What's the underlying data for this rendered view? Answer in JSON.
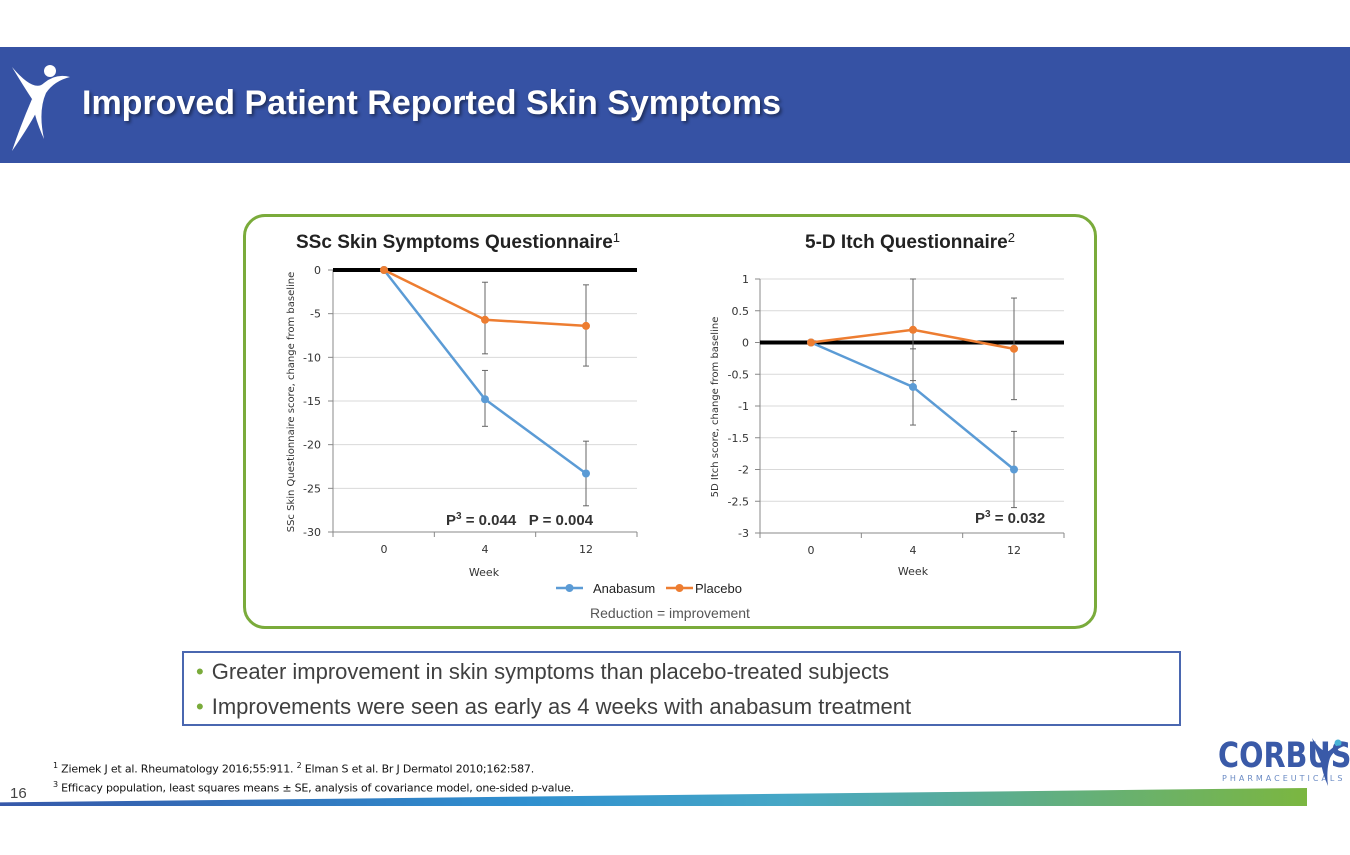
{
  "slide": {
    "title": "Improved Patient Reported Skin Symptoms",
    "page_number": "16"
  },
  "colors": {
    "banner": "#3652a4",
    "frame": "#7aab3b",
    "anabasum": "#5b9bd5",
    "placebo": "#ed7d31",
    "bottom_bar_start": "#3658a9",
    "bottom_bar_end": "#7bb640"
  },
  "legend": {
    "items": [
      "Anabasum",
      "Placebo"
    ],
    "note": "Reduction = improvement"
  },
  "chart_data": [
    {
      "type": "line",
      "title": "SSc Skin Symptoms Questionnaire",
      "title_sup": "1",
      "xlabel": "Week",
      "ylabel": "SSc Skin Questionnaire score, change from baseline",
      "categories": [
        "0",
        "4",
        "12"
      ],
      "ylim": [
        -30,
        0
      ],
      "yticks": [
        "0",
        "-5",
        "-10",
        "-15",
        "-20",
        "-25",
        "-30"
      ],
      "grid": true,
      "series": [
        {
          "name": "Anabasum",
          "values": [
            0,
            -14.8,
            -23.3
          ],
          "err_low": [
            0,
            -17.9,
            -27.0
          ],
          "err_high": [
            0,
            -11.5,
            -19.6
          ]
        },
        {
          "name": "Placebo",
          "values": [
            0,
            -5.7,
            -6.4
          ],
          "err_low": [
            0,
            -9.6,
            -11.0
          ],
          "err_high": [
            0,
            -1.4,
            -1.7
          ]
        }
      ],
      "annotation": {
        "text_a": "P",
        "sup": "3",
        "text_b": " = 0.044   P = 0.004"
      }
    },
    {
      "type": "line",
      "title": "5-D Itch Questionnaire",
      "title_sup": "2",
      "xlabel": "Week",
      "ylabel": "5D Itch score, change from baseline",
      "categories": [
        "0",
        "4",
        "12"
      ],
      "ylim": [
        -3,
        1
      ],
      "yticks": [
        "1",
        "0.5",
        "0",
        "-0.5",
        "-1",
        "-1.5",
        "-2",
        "-2.5",
        "-3"
      ],
      "grid": true,
      "series": [
        {
          "name": "Anabasum",
          "values": [
            0,
            -0.7,
            -2.0
          ],
          "err_low": [
            0,
            -1.3,
            -2.6
          ],
          "err_high": [
            0,
            -0.1,
            -1.4
          ]
        },
        {
          "name": "Placebo",
          "values": [
            0,
            0.2,
            -0.1
          ],
          "err_low": [
            0,
            -0.6,
            -0.9
          ],
          "err_high": [
            0,
            1.0,
            0.7
          ]
        }
      ],
      "annotation": {
        "text_a": "P",
        "sup": "3",
        "text_b": " = 0.032"
      }
    }
  ],
  "bullets": [
    "Greater improvement in skin symptoms than placebo-treated subjects",
    "Improvements were seen as early as 4 weeks with anabasum treatment"
  ],
  "footnotes": {
    "line1_sup1": "1",
    "line1_a": " Ziemek J et al. Rheumatology 2016;55:911. ",
    "line1_sup2": "2",
    "line1_b": " Elman S et al. Br J Dermatol 2010;162:587.",
    "line2_sup": "3",
    "line2": " Efficacy population, least squares means ± SE, analysis of covariance model, one-sided p-value."
  },
  "logo": {
    "name": "CORBUS",
    "sub": "PHARMACEUTICALS"
  }
}
